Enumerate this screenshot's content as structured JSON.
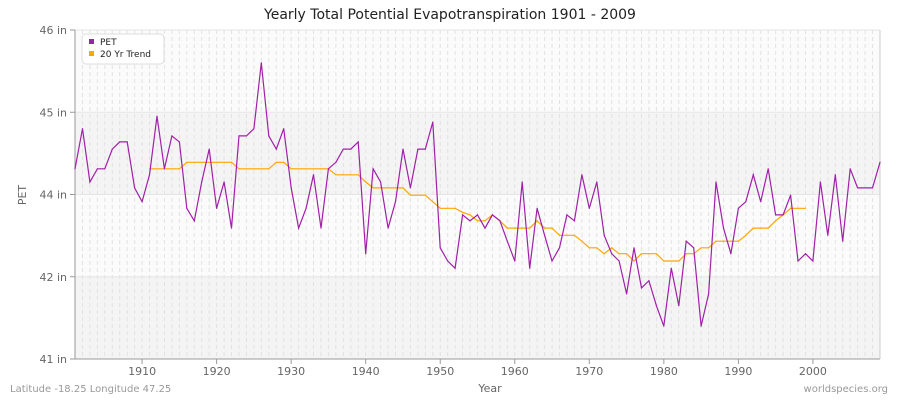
{
  "chart_data": {
    "type": "line",
    "title": "Yearly Total Potential Evapotranspiration 1901 - 2009",
    "xlabel": "Year",
    "ylabel": "PET",
    "xlim": [
      1901,
      2009
    ],
    "ylim": [
      41,
      46
    ],
    "y_ticks": [
      41,
      42.25,
      43.5,
      44.75,
      46
    ],
    "y_tick_labels": [
      "41 in",
      "42 in",
      "44 in",
      "45 in",
      "46 in"
    ],
    "x_ticks": [
      1910,
      1920,
      1930,
      1940,
      1950,
      1960,
      1970,
      1980,
      1990,
      2000
    ],
    "grid": true,
    "legend_position": "top-left",
    "series": [
      {
        "name": "PET",
        "color": "#a020a8",
        "start_year": 1901,
        "values": [
          43.89,
          44.5,
          43.69,
          43.89,
          43.89,
          44.19,
          44.3,
          44.3,
          43.6,
          43.39,
          43.8,
          44.69,
          43.89,
          44.39,
          44.3,
          43.29,
          43.1,
          43.69,
          44.19,
          43.29,
          43.69,
          42.99,
          44.39,
          44.39,
          44.5,
          45.5,
          44.39,
          44.19,
          44.5,
          43.6,
          42.99,
          43.29,
          43.8,
          42.99,
          43.89,
          43.99,
          44.19,
          44.19,
          44.3,
          42.6,
          43.89,
          43.69,
          42.99,
          43.39,
          44.19,
          43.6,
          44.19,
          44.19,
          44.6,
          42.69,
          42.49,
          42.38,
          43.19,
          43.1,
          43.19,
          42.99,
          43.19,
          43.1,
          42.79,
          42.49,
          43.69,
          42.38,
          43.29,
          42.88,
          42.49,
          42.69,
          43.19,
          43.1,
          43.8,
          43.29,
          43.69,
          42.88,
          42.6,
          42.49,
          41.99,
          42.69,
          42.08,
          42.19,
          41.81,
          41.5,
          42.38,
          41.81,
          42.79,
          42.69,
          41.5,
          41.99,
          43.69,
          42.99,
          42.6,
          43.29,
          43.39,
          43.8,
          43.39,
          43.89,
          43.19,
          43.19,
          43.49,
          42.49,
          42.6,
          42.49,
          43.69,
          42.88,
          43.8,
          42.79,
          43.89,
          43.6,
          43.6,
          43.6,
          43.99
        ]
      },
      {
        "name": "20 Yr Trend",
        "color": "#ffa500",
        "start_year": 1911,
        "values": [
          43.89,
          43.89,
          43.89,
          43.89,
          43.89,
          43.99,
          43.99,
          43.99,
          43.99,
          43.99,
          43.99,
          43.99,
          43.89,
          43.89,
          43.89,
          43.89,
          43.89,
          43.99,
          43.99,
          43.89,
          43.89,
          43.89,
          43.89,
          43.89,
          43.89,
          43.8,
          43.8,
          43.8,
          43.8,
          43.69,
          43.6,
          43.6,
          43.6,
          43.6,
          43.6,
          43.49,
          43.49,
          43.49,
          43.39,
          43.29,
          43.29,
          43.29,
          43.23,
          43.19,
          43.1,
          43.1,
          43.19,
          43.1,
          42.99,
          42.99,
          42.99,
          42.99,
          43.1,
          42.99,
          42.99,
          42.88,
          42.88,
          42.88,
          42.79,
          42.69,
          42.69,
          42.6,
          42.69,
          42.6,
          42.6,
          42.49,
          42.6,
          42.6,
          42.6,
          42.49,
          42.49,
          42.49,
          42.6,
          42.6,
          42.69,
          42.69,
          42.79,
          42.79,
          42.79,
          42.79,
          42.88,
          42.99,
          42.99,
          42.99,
          43.1,
          43.19,
          43.29,
          43.29,
          43.29
        ]
      }
    ]
  },
  "footer": {
    "location": "Latitude -18.25 Longitude 47.25",
    "source": "worldspecies.org"
  }
}
